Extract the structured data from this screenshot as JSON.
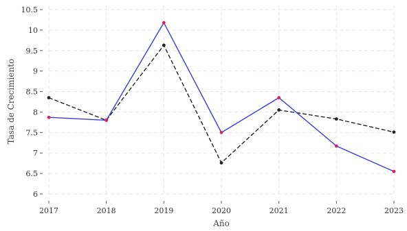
{
  "chart_data": {
    "type": "line",
    "title": "",
    "xlabel": "Año",
    "ylabel": "Tasa de Crecimiento",
    "x": [
      2017,
      2018,
      2019,
      2020,
      2021,
      2022,
      2023
    ],
    "x_tick_labels": [
      "2017",
      "2018",
      "2019",
      "2020",
      "2021",
      "2022",
      "2023"
    ],
    "y_ticks": [
      6,
      6.5,
      7,
      7.5,
      8,
      8.5,
      9,
      9.5,
      10,
      10.5
    ],
    "y_tick_labels": [
      "6",
      "6.5",
      "7",
      "7.5",
      "8",
      "8.5",
      "9",
      "9.5",
      "10",
      "10.5"
    ],
    "ylim": [
      5.95,
      10.6
    ],
    "xlim": [
      2017,
      2023
    ],
    "grid": true,
    "legend": "none",
    "series": [
      {
        "values": [
          7.87,
          7.8,
          10.18,
          7.5,
          8.35,
          7.17,
          6.55
        ],
        "line_color": "#3a3ae0",
        "marker_color": "#e0205a",
        "line_style": "solid"
      },
      {
        "values": [
          8.35,
          7.8,
          9.63,
          6.76,
          8.05,
          7.83,
          7.51
        ],
        "line_color": "#222222",
        "marker_color": "#222222",
        "line_style": "dashed"
      }
    ]
  }
}
